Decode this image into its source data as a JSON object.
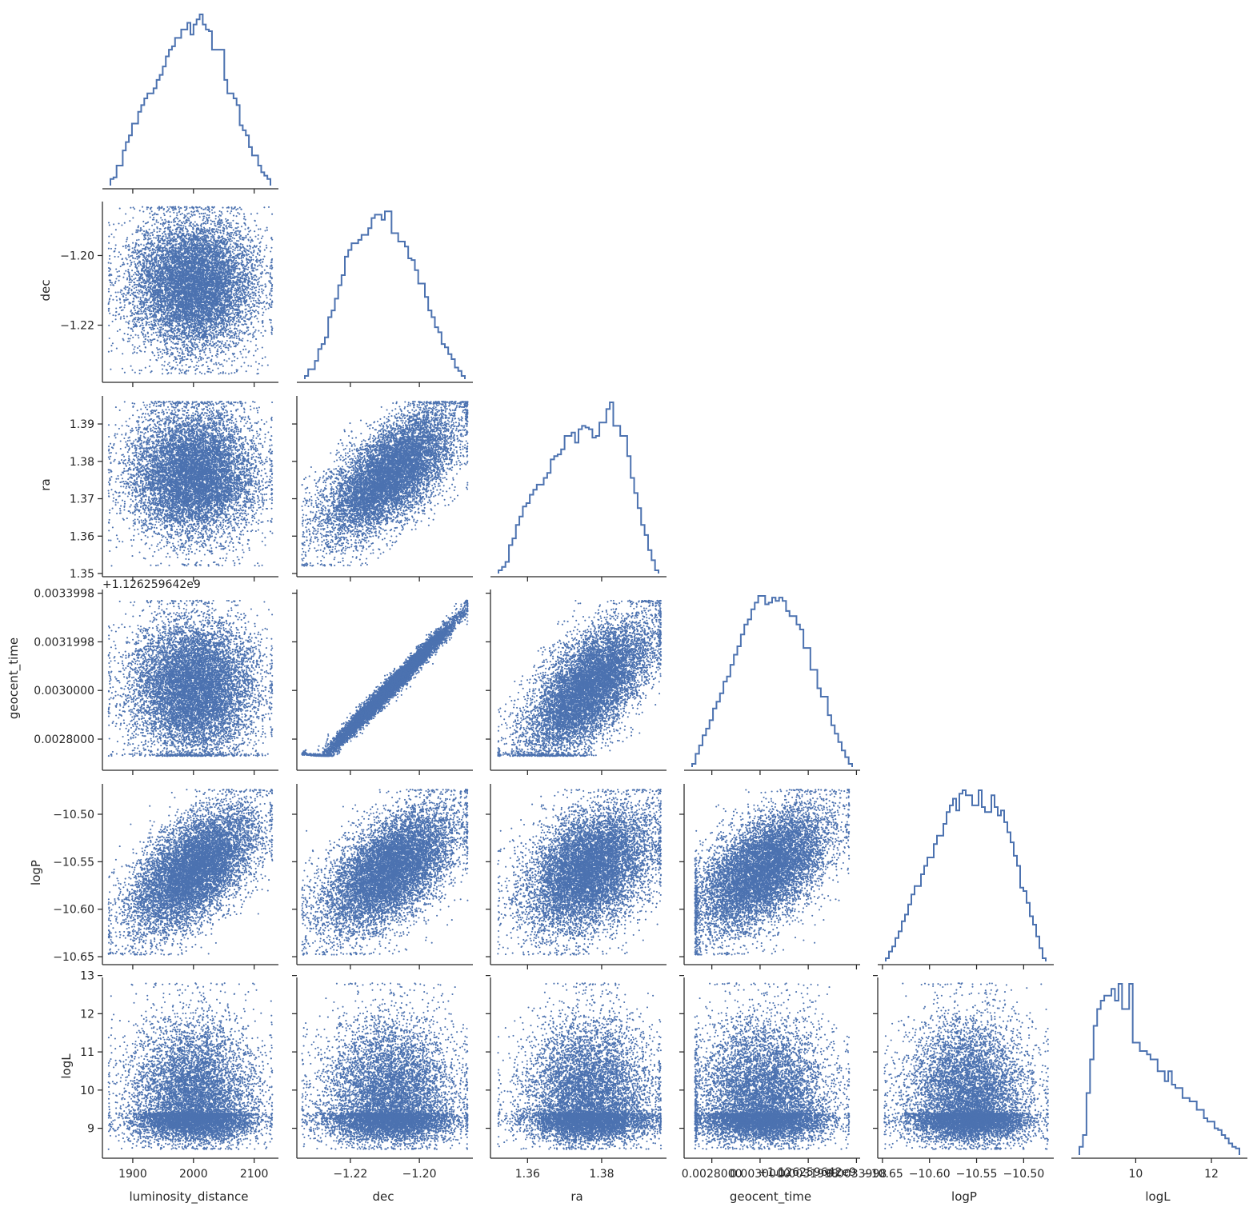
{
  "chart_data": {
    "type": "scatter",
    "subtype": "corner-pairplot",
    "color": "#4c72b0",
    "grid": false,
    "legend": "none",
    "samples_shown": 9000,
    "variables": [
      {
        "name": "luminosity_distance",
        "label": "luminosity_distance",
        "range": [
          1850,
          2140
        ],
        "ticks": [
          1900,
          2000,
          2100
        ],
        "tick_labels": [
          "1900",
          "2000",
          "2100"
        ],
        "offset": "",
        "distribution": {
          "shape": "normal",
          "mean": 2000,
          "std": 52,
          "min": 1860,
          "max": 2130
        },
        "histogram": [
          0.02,
          0.03,
          0.1,
          0.1,
          0.19,
          0.24,
          0.28,
          0.35,
          0.35,
          0.42,
          0.46,
          0.5,
          0.53,
          0.53,
          0.56,
          0.61,
          0.64,
          0.69,
          0.75,
          0.79,
          0.81,
          0.86,
          0.86,
          0.91,
          0.91,
          0.95,
          0.88,
          0.94,
          0.97,
          1.0,
          0.94,
          0.91,
          0.9,
          0.79,
          0.79,
          0.79,
          0.79,
          0.61,
          0.53,
          0.53,
          0.5,
          0.46,
          0.34,
          0.31,
          0.28,
          0.21,
          0.16,
          0.16,
          0.1,
          0.06,
          0.04,
          0.02
        ]
      },
      {
        "name": "dec",
        "label": "dec",
        "range": [
          -1.2355,
          -1.1845
        ],
        "ticks": [
          -1.22,
          -1.2
        ],
        "tick_labels": [
          "−1.22",
          "−1.20"
        ],
        "offset": "",
        "distribution": {
          "shape": "normal",
          "mean": -1.2085,
          "std": 0.0095,
          "min": -1.234,
          "max": -1.186
        },
        "histogram": [
          0.0,
          0.04,
          0.04,
          0.09,
          0.16,
          0.19,
          0.23,
          0.35,
          0.39,
          0.46,
          0.54,
          0.6,
          0.71,
          0.75,
          0.79,
          0.79,
          0.81,
          0.84,
          0.84,
          0.88,
          0.94,
          0.96,
          0.96,
          0.93,
          0.98,
          0.98,
          0.85,
          0.85,
          0.8,
          0.8,
          0.77,
          0.7,
          0.69,
          0.63,
          0.55,
          0.55,
          0.47,
          0.39,
          0.35,
          0.29,
          0.26,
          0.19,
          0.17,
          0.13,
          0.1,
          0.05,
          0.03,
          0.0
        ]
      },
      {
        "name": "ra",
        "label": "ra",
        "range": [
          1.35,
          1.3975
        ],
        "ticks": [
          1.36,
          1.38
        ],
        "tick_labels": [
          "1.36",
          "1.38"
        ],
        "offset": "",
        "ytick_values": [
          1.35,
          1.36,
          1.37,
          1.38,
          1.39
        ],
        "ytick_labels": [
          "1.35",
          "1.36",
          "1.37",
          "1.38",
          "1.39"
        ],
        "distribution": {
          "shape": "normal",
          "mean": 1.3765,
          "std": 0.0085,
          "min": 1.352,
          "max": 1.396
        },
        "histogram": [
          0.0,
          0.02,
          0.05,
          0.15,
          0.19,
          0.27,
          0.32,
          0.38,
          0.4,
          0.45,
          0.48,
          0.51,
          0.51,
          0.55,
          0.58,
          0.66,
          0.68,
          0.69,
          0.72,
          0.8,
          0.8,
          0.82,
          0.76,
          0.84,
          0.86,
          0.85,
          0.84,
          0.79,
          0.8,
          0.88,
          0.88,
          0.96,
          1.0,
          0.86,
          0.86,
          0.8,
          0.8,
          0.68,
          0.55,
          0.46,
          0.37,
          0.27,
          0.21,
          0.12,
          0.06,
          0.0
        ]
      },
      {
        "name": "geocent_time",
        "label": "geocent_time",
        "range": [
          0.002685,
          0.003415
        ],
        "ticks": [
          0.0028,
          0.003,
          0.0031998,
          0.0033998
        ],
        "tick_labels": [
          "0.0028000",
          "0.0030000",
          "0.0031998",
          "0.0033998"
        ],
        "xtick_labels": [
          "0.0028000",
          "0.0030000",
          "0.0031998",
          "0.0033998"
        ],
        "offset": "+1.126259642e9",
        "distribution": {
          "shape": "normal",
          "mean": 0.00301,
          "std": 0.00014,
          "min": 0.00273,
          "max": 0.00337
        },
        "histogram": [
          0.0,
          0.06,
          0.11,
          0.17,
          0.21,
          0.26,
          0.33,
          0.37,
          0.42,
          0.49,
          0.52,
          0.59,
          0.65,
          0.7,
          0.77,
          0.83,
          0.86,
          0.92,
          0.96,
          1.0,
          1.0,
          0.95,
          0.96,
          0.99,
          0.97,
          0.99,
          0.97,
          0.91,
          0.88,
          0.88,
          0.83,
          0.8,
          0.69,
          0.69,
          0.56,
          0.56,
          0.45,
          0.4,
          0.4,
          0.29,
          0.23,
          0.18,
          0.13,
          0.08,
          0.04,
          0.0
        ]
      },
      {
        "name": "logP",
        "label": "logP",
        "range": [
          -10.655,
          -10.468
        ],
        "ticks": [
          -10.65,
          -10.6,
          -10.55,
          -10.5
        ],
        "tick_labels": [
          "−10.65",
          "−10.60",
          "−10.55",
          "−10.50"
        ],
        "offset": "",
        "distribution": {
          "shape": "normal",
          "mean": -10.558,
          "std": 0.033,
          "min": -10.648,
          "max": -10.474
        },
        "histogram": [
          0.0,
          0.04,
          0.07,
          0.12,
          0.16,
          0.22,
          0.26,
          0.32,
          0.38,
          0.43,
          0.43,
          0.5,
          0.55,
          0.6,
          0.6,
          0.68,
          0.73,
          0.73,
          0.8,
          0.87,
          0.91,
          0.95,
          0.88,
          0.98,
          1.0,
          0.97,
          0.97,
          0.91,
          0.91,
          1.0,
          0.9,
          0.87,
          0.87,
          0.97,
          0.9,
          0.85,
          0.88,
          0.81,
          0.75,
          0.69,
          0.61,
          0.55,
          0.42,
          0.4,
          0.33,
          0.25,
          0.2,
          0.13,
          0.06,
          0.0
        ]
      },
      {
        "name": "logL",
        "label": "logL",
        "range": [
          8.3,
          12.95
        ],
        "ticks": [
          9,
          10,
          11,
          12,
          13
        ],
        "tick_labels": [
          "9",
          "10",
          "11",
          "12",
          "13"
        ],
        "xtick_values": [
          10,
          12
        ],
        "xtick_labels": [
          "10",
          "12"
        ],
        "offset": "",
        "distribution": {
          "shape": "skewed",
          "mode": 9.4,
          "min": 8.45,
          "max": 12.8
        },
        "histogram": [
          0.03,
          0.1,
          0.35,
          0.55,
          0.75,
          0.85,
          0.9,
          0.93,
          0.93,
          0.97,
          0.9,
          1.0,
          0.85,
          0.85,
          1.0,
          0.65,
          0.65,
          0.6,
          0.6,
          0.58,
          0.55,
          0.55,
          0.48,
          0.48,
          0.42,
          0.48,
          0.4,
          0.38,
          0.38,
          0.32,
          0.32,
          0.3,
          0.3,
          0.25,
          0.25,
          0.2,
          0.18,
          0.18,
          0.14,
          0.13,
          0.1,
          0.08,
          0.05,
          0.03,
          0.02
        ]
      }
    ],
    "correlations": {
      "dec|ra": 0.65,
      "dec|geocent_time": 0.99,
      "ra|geocent_time": 0.64,
      "luminosity_distance|logP": 0.58,
      "dec|logP": 0.57,
      "ra|logP": 0.37,
      "geocent_time|logP": 0.56
    }
  }
}
